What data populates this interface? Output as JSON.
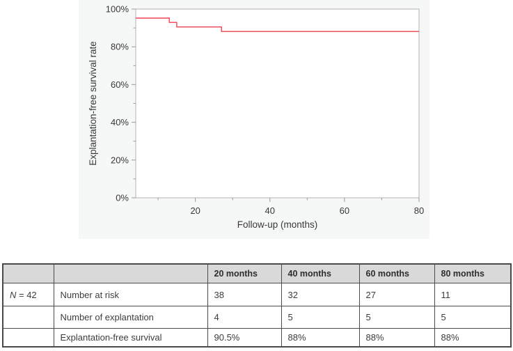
{
  "chart_data": {
    "type": "line",
    "subtype": "kaplan-meier-step",
    "title": "",
    "xlabel": "Follow-up (months)",
    "ylabel": "Explantation-free survival rate",
    "xlim": [
      4,
      80
    ],
    "ylim": [
      0,
      100
    ],
    "x_major_ticks": [
      20,
      40,
      60,
      80
    ],
    "x_minor_ticks": [
      10,
      30,
      50,
      70
    ],
    "y_major_ticks": [
      0,
      20,
      40,
      60,
      80,
      100
    ],
    "y_minor_ticks": [
      10,
      30,
      50,
      70,
      90
    ],
    "y_tick_format": "percent",
    "grid": false,
    "legend": false,
    "line_color": "#f04352",
    "axis_color": "#b3b3b3",
    "tick_color": "#9a9a9a",
    "plot_bg": "#ffffff",
    "figure_bg": "#f6f7f7",
    "series": [
      {
        "name": "Explantation-free survival",
        "points": [
          [
            4,
            95.2
          ],
          [
            13,
            95.2
          ],
          [
            13,
            92.9
          ],
          [
            15,
            92.9
          ],
          [
            15,
            90.5
          ],
          [
            27,
            90.5
          ],
          [
            27,
            88.1
          ],
          [
            80,
            88.1
          ]
        ]
      }
    ]
  },
  "table": {
    "headers": [
      "",
      "",
      "20 months",
      "40 months",
      "60 months",
      "80 months"
    ],
    "rows": [
      {
        "group_n": "N",
        "group_rest": " = 42",
        "label": "Number at risk",
        "values": [
          "38",
          "32",
          "27",
          "11"
        ]
      },
      {
        "group": "",
        "label": "Number of explantation",
        "values": [
          "4",
          "5",
          "5",
          "5"
        ]
      },
      {
        "group": "",
        "label": "Explantation-free survival",
        "values": [
          "90.5%",
          "88%",
          "88%",
          "88%"
        ]
      }
    ],
    "colors": {
      "header_bg": "#d9d9d9",
      "border": "#4a4a4a"
    }
  }
}
